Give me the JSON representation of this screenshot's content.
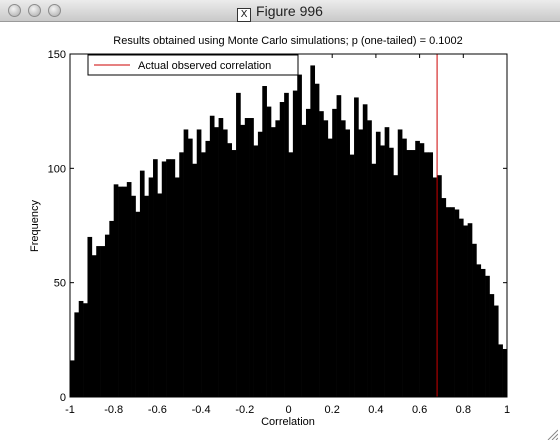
{
  "window": {
    "title": "Figure 996",
    "x_icon": "X"
  },
  "chart_data": {
    "type": "bar",
    "title": "Results obtained using Monte Carlo simulations; p (one-tailed) = 0.1002",
    "xlabel": "Correlation",
    "ylabel": "Frequency",
    "xlim": [
      -1,
      1
    ],
    "ylim": [
      0,
      150
    ],
    "xticks": [
      "-1",
      "-0.8",
      "-0.6",
      "-0.4",
      "-0.2",
      "0",
      "0.2",
      "0.4",
      "0.6",
      "0.8",
      "1"
    ],
    "yticks": [
      "0",
      "50",
      "100",
      "150"
    ],
    "legend": {
      "entries": [
        "Actual observed correlation"
      ],
      "location": "top-left"
    },
    "observed_correlation": 0.68,
    "observed_color": "#cc0000",
    "bar_color": "#000000",
    "bin_width": 0.02,
    "x": [
      -0.99,
      -0.97,
      -0.95,
      -0.93,
      -0.91,
      -0.89,
      -0.87,
      -0.85,
      -0.83,
      -0.81,
      -0.79,
      -0.77,
      -0.75,
      -0.73,
      -0.71,
      -0.69,
      -0.67,
      -0.65,
      -0.63,
      -0.61,
      -0.59,
      -0.57,
      -0.55,
      -0.53,
      -0.51,
      -0.49,
      -0.47,
      -0.45,
      -0.43,
      -0.41,
      -0.39,
      -0.37,
      -0.35,
      -0.33,
      -0.31,
      -0.29,
      -0.27,
      -0.25,
      -0.23,
      -0.21,
      -0.19,
      -0.17,
      -0.15,
      -0.13,
      -0.11,
      -0.09,
      -0.07,
      -0.05,
      -0.03,
      -0.01,
      0.01,
      0.03,
      0.05,
      0.07,
      0.09,
      0.11,
      0.13,
      0.15,
      0.17,
      0.19,
      0.21,
      0.23,
      0.25,
      0.27,
      0.29,
      0.31,
      0.33,
      0.35,
      0.37,
      0.39,
      0.41,
      0.43,
      0.45,
      0.47,
      0.49,
      0.51,
      0.53,
      0.55,
      0.57,
      0.59,
      0.61,
      0.63,
      0.65,
      0.67,
      0.69,
      0.71,
      0.73,
      0.75,
      0.77,
      0.79,
      0.81,
      0.83,
      0.85,
      0.87,
      0.89,
      0.91,
      0.93,
      0.95,
      0.97,
      0.99
    ],
    "values": [
      16,
      37,
      42,
      41,
      70,
      62,
      66,
      66,
      71,
      77,
      93,
      92,
      92,
      94,
      88,
      81,
      99,
      88,
      96,
      104,
      89,
      103,
      104,
      104,
      96,
      107,
      117,
      113,
      102,
      117,
      107,
      112,
      123,
      118,
      122,
      117,
      111,
      108,
      133,
      119,
      122,
      122,
      110,
      116,
      136,
      127,
      118,
      121,
      129,
      133,
      107,
      134,
      141,
      119,
      126,
      145,
      137,
      125,
      121,
      113,
      126,
      132,
      121,
      117,
      106,
      131,
      117,
      128,
      121,
      102,
      116,
      110,
      118,
      109,
      97,
      117,
      113,
      108,
      108,
      112,
      111,
      107,
      107,
      96,
      97,
      87,
      83,
      83,
      82,
      78,
      75,
      76,
      67,
      58,
      56,
      53,
      45,
      40,
      23,
      21
    ]
  }
}
